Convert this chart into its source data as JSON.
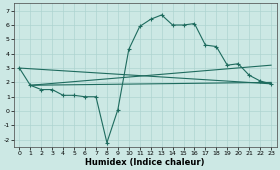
{
  "xlabel": "Humidex (Indice chaleur)",
  "xlim": [
    -0.5,
    23.5
  ],
  "ylim": [
    -2.5,
    7.5
  ],
  "yticks": [
    -2,
    -1,
    0,
    1,
    2,
    3,
    4,
    5,
    6,
    7
  ],
  "xticks": [
    0,
    1,
    2,
    3,
    4,
    5,
    6,
    7,
    8,
    9,
    10,
    11,
    12,
    13,
    14,
    15,
    16,
    17,
    18,
    19,
    20,
    21,
    22,
    23
  ],
  "bg_color": "#cce8e4",
  "grid_color": "#aed4d0",
  "line_color": "#1e6b5e",
  "line1_x": [
    0,
    1,
    2,
    3,
    4,
    5,
    6,
    7,
    8,
    9,
    10,
    11,
    12,
    13,
    14,
    15,
    16,
    17,
    18,
    19,
    20,
    21,
    22,
    23
  ],
  "line1_y": [
    3.0,
    1.8,
    1.5,
    1.5,
    1.1,
    1.1,
    1.0,
    1.0,
    -2.2,
    0.1,
    4.3,
    5.9,
    6.4,
    6.7,
    6.0,
    6.0,
    6.1,
    4.6,
    4.5,
    3.2,
    3.3,
    2.5,
    2.1,
    1.9
  ],
  "line2_x": [
    0,
    23
  ],
  "line2_y": [
    3.0,
    1.9
  ],
  "line3_x": [
    1,
    23
  ],
  "line3_y": [
    1.8,
    2.0
  ],
  "line4_x": [
    1,
    23
  ],
  "line4_y": [
    1.8,
    3.2
  ]
}
